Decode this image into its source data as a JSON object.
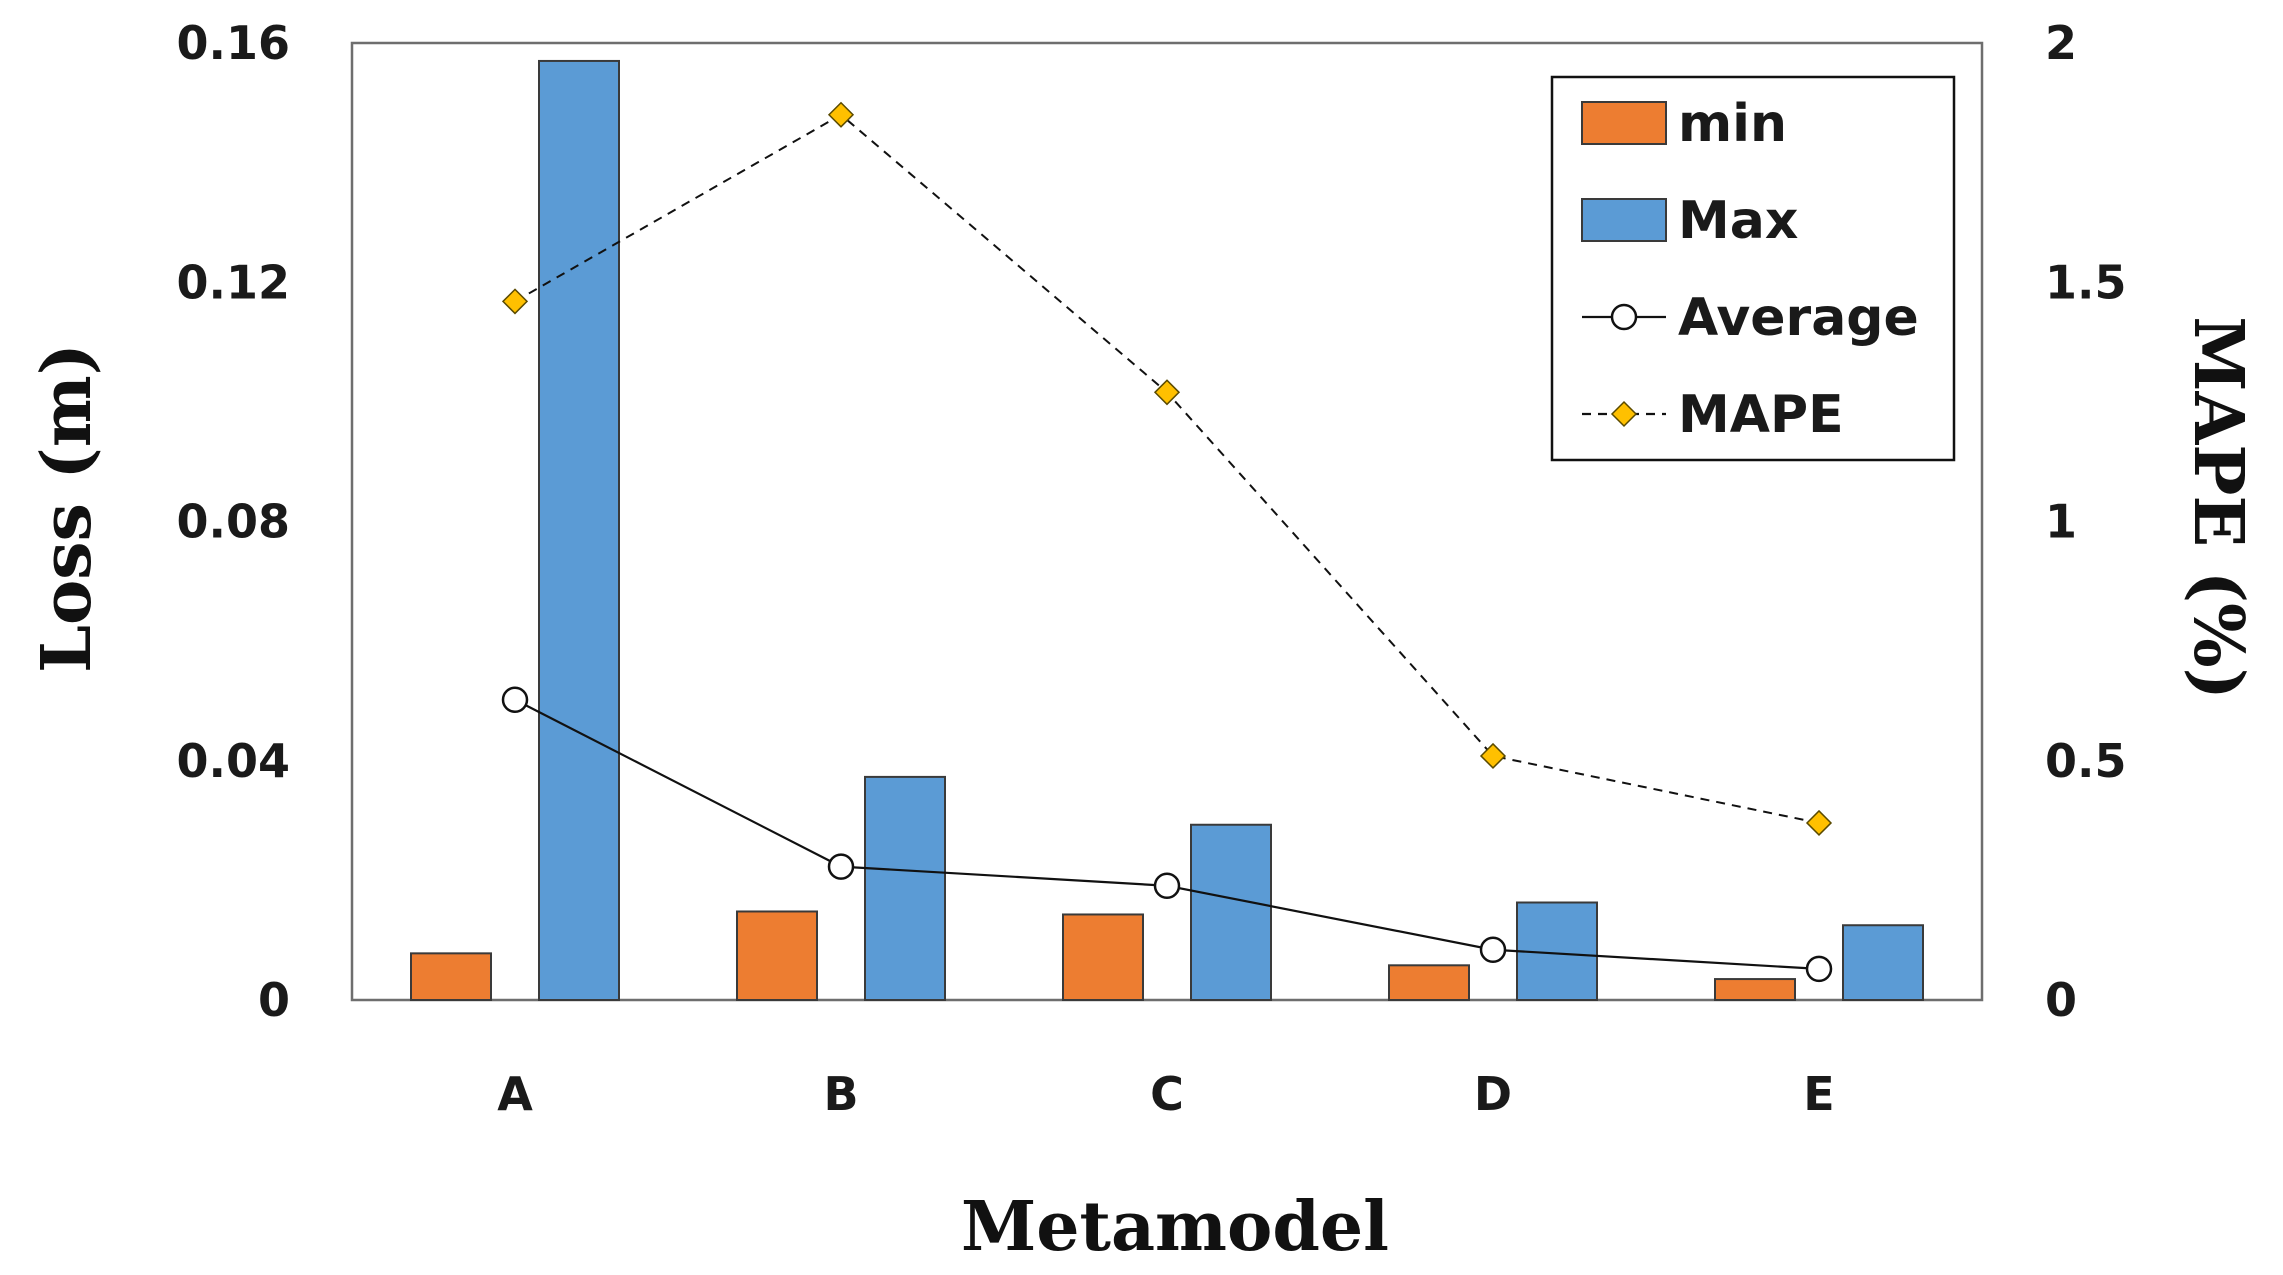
{
  "chart_data": {
    "type": "bar",
    "categories": [
      "A",
      "B",
      "C",
      "D",
      "E"
    ],
    "xlabel": "Metamodel",
    "ylabel": "Loss (m)",
    "y2label": "MAPE (%)",
    "ylim": [
      0,
      0.16
    ],
    "y2lim": [
      0,
      2
    ],
    "yticks": [
      "0",
      "0.04",
      "0.08",
      "0.12",
      "0.16"
    ],
    "y2ticks": [
      "0",
      "0.5",
      "1",
      "1.5",
      "2"
    ],
    "legend_position": "top-right",
    "series": [
      {
        "name": "min",
        "kind": "bar",
        "axis": "left",
        "color": "#ED7D31",
        "values": [
          0.0078,
          0.0148,
          0.0143,
          0.0058,
          0.0035
        ]
      },
      {
        "name": "Max",
        "kind": "bar",
        "axis": "left",
        "color": "#5B9BD5",
        "values": [
          0.157,
          0.0373,
          0.0293,
          0.0163,
          0.0125
        ]
      },
      {
        "name": "Average",
        "kind": "line",
        "marker": "circle",
        "axis": "left",
        "color": "#000000",
        "values": [
          0.0502,
          0.0223,
          0.0191,
          0.0084,
          0.0052
        ]
      },
      {
        "name": "MAPE",
        "kind": "line",
        "marker": "diamond",
        "dashed": true,
        "axis": "right",
        "color": "#FFC000",
        "values": [
          1.46,
          1.85,
          1.27,
          0.51,
          0.37
        ]
      }
    ]
  }
}
